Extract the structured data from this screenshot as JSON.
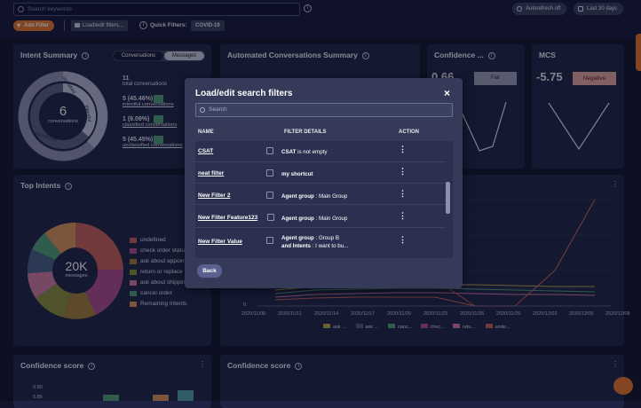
{
  "topbar": {
    "search_placeholder": "Search keywords",
    "autorefresh_label": "Autorefresh off",
    "range_label": "Last 30 days",
    "add_filter_label": "Add Filter",
    "load_filters_label": "Load/edit filters...",
    "quick_filters_label": "Quick Filters:",
    "quick_filter_chip": "COVID-19"
  },
  "intent_summary": {
    "title": "Intent Summary",
    "tabs": [
      "Conversations",
      "Messages"
    ],
    "center_value": "6",
    "center_label": "conversations",
    "ring_labels": [
      "classified",
      "intentful",
      "unclassified"
    ],
    "stats": [
      {
        "value": "11",
        "label": "total conversations"
      },
      {
        "value": "5 (45.46%)",
        "label": "intentful conversations"
      },
      {
        "value": "1 (9.09%)",
        "label": "classified conversations"
      },
      {
        "value": "5 (45.45%)",
        "label": "unclassified conversations"
      }
    ]
  },
  "automated": {
    "title": "Automated Conversations Summary"
  },
  "confidence_top": {
    "title": "Confidence ...",
    "value": "0.66",
    "badge": "Fair"
  },
  "mcs": {
    "title": "MCS",
    "value": "-5.75",
    "badge": "Negative"
  },
  "top_intents": {
    "title": "Top Intents",
    "center_value": "20K",
    "center_label": "messages",
    "legend": [
      {
        "label": "undefined",
        "color": "#c95f5a"
      },
      {
        "label": "check order status",
        "color": "#ad4d8c"
      },
      {
        "label": "ask about appointment",
        "color": "#a07f3a"
      },
      {
        "label": "return or replace",
        "color": "#8a8f3c"
      },
      {
        "label": "ask about shipping",
        "color": "#d07aa2"
      },
      {
        "label": "cancel order",
        "color": "#4f9f78"
      },
      {
        "label": "Remaining Intents",
        "color": "#d9935a"
      }
    ]
  },
  "trend": {
    "y_tick": "0",
    "x_ticks": [
      "2020/11/08",
      "2020/11/11",
      "2020/11/14",
      "2020/11/17",
      "2020/11/20",
      "2020/11/23",
      "2020/11/26",
      "2020/11/29",
      "2020/12/02",
      "2020/12/05",
      "2020/12/08"
    ],
    "legend": [
      {
        "label": "ask ...",
        "color": "#b8a64a"
      },
      {
        "label": "ask ...",
        "color": "#4a5f86"
      },
      {
        "label": "canc...",
        "color": "#4f9f78"
      },
      {
        "label": "chec...",
        "color": "#ad4d8c"
      },
      {
        "label": "retu...",
        "color": "#d07aa2"
      },
      {
        "label": "unde...",
        "color": "#c95f5a"
      }
    ]
  },
  "confidence_left": {
    "title": "Confidence score",
    "y_ticks": [
      "0.90",
      "0.85"
    ]
  },
  "confidence_right": {
    "title": "Confidence score"
  },
  "modal": {
    "title": "Load/edit search filters",
    "close": "×",
    "search_placeholder": "Search",
    "columns": [
      "NAME",
      "FILTER DETAILS",
      "ACTION"
    ],
    "rows": [
      {
        "name": "CSAT",
        "details": [
          {
            "key": "CSAT",
            "text": " is not empty"
          }
        ]
      },
      {
        "name": "neat filter",
        "details": [
          {
            "key": "my shortcut",
            "text": ""
          }
        ]
      },
      {
        "name": "New Filter 2",
        "details": [
          {
            "key": "Agent group",
            "text": " : Main Group"
          }
        ]
      },
      {
        "name": "New Filter Feature123",
        "details": [
          {
            "key": "Agent group",
            "text": " : Main Group"
          }
        ]
      },
      {
        "name": "New Filter Value",
        "details": [
          {
            "key": "Agent group",
            "text": " : Group B"
          },
          {
            "key": "and Intents",
            "text": " : I want to bu..."
          }
        ]
      }
    ],
    "back_label": "Back"
  },
  "colors": {
    "accent": "#e8752b",
    "page_bg": "#11142b",
    "card_bg": "#1e2346",
    "modal_bg": "#353a58"
  }
}
